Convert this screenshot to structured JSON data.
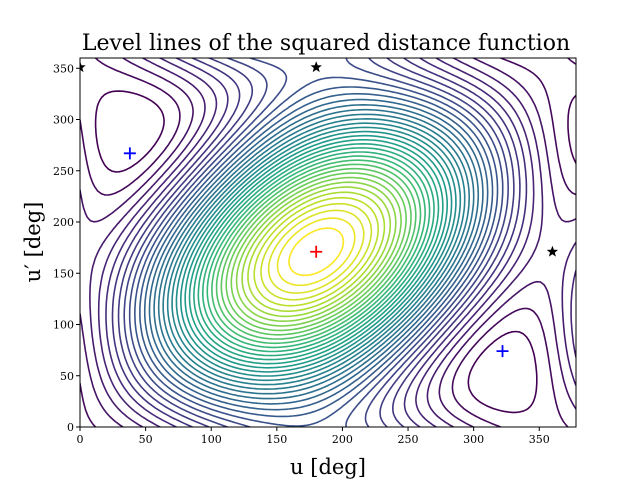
{
  "chart_data": {
    "type": "contour",
    "title": "Level lines of the squared distance function",
    "xlabel": "u [deg]",
    "ylabel": "u′ [deg]",
    "xlim": [
      0,
      378
    ],
    "ylim": [
      0,
      360
    ],
    "xticks": [
      0,
      50,
      100,
      150,
      200,
      250,
      300,
      350
    ],
    "yticks": [
      0,
      50,
      100,
      150,
      200,
      250,
      300,
      350
    ],
    "grid": false,
    "colormap": "viridis",
    "levels": 40,
    "minimum_marker": {
      "x": 180,
      "y": 171,
      "color": "#ff0000",
      "symbol": "plus"
    },
    "saddle_markers": [
      {
        "x": 38,
        "y": 267,
        "color": "#0000ff",
        "symbol": "plus"
      },
      {
        "x": 322,
        "y": 74,
        "color": "#0000ff",
        "symbol": "plus"
      }
    ],
    "maximum_markers": [
      {
        "x": 0,
        "y": 351,
        "color": "#000000",
        "symbol": "star"
      },
      {
        "x": 180,
        "y": 351,
        "color": "#000000",
        "symbol": "star"
      },
      {
        "x": 360,
        "y": 171,
        "color": "#000000",
        "symbol": "star"
      }
    ]
  }
}
